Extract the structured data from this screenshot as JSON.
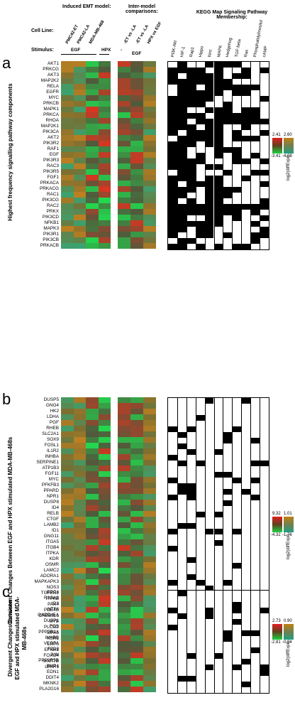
{
  "header": {
    "induced_emt": "Induced EMT model:",
    "inter_model": "Inter-model comparisons:",
    "cell_line": "Cell Line:",
    "stimulus": "Stimulus:",
    "kegg_title": "KEGG Map Signaling Pathway Membership:",
    "cell_lines": [
      "PMC42-ET",
      "PMC42-LA",
      "MDA-MB-468"
    ],
    "comparisons": [
      "-ET vs -LA",
      "-ET vs -LA",
      "HPX vs EGF"
    ],
    "stimuli": [
      "EGF",
      "HPX",
      "-",
      "EGF",
      "MDA-MB-468"
    ],
    "pathways": [
      "PI3K-Akt",
      "HIF-1",
      "Rap1",
      "Hippo",
      "Wnt",
      "MAPK",
      "Hedgehog",
      "TGF-beta",
      "Ras",
      "Phosphatidylinositol",
      "cAMP"
    ]
  },
  "panels": [
    {
      "letter": "a",
      "side_label": "Highest frequency signalling pathway components",
      "genes": [
        "AKT1",
        "PRKCG",
        "AKT3",
        "MAP2K2",
        "RELA",
        "EGFR",
        "MYC",
        "PRKCB",
        "MAPK1",
        "PRKCA",
        "RHOA",
        "MAP2K1",
        "PIK3CA",
        "AKT2",
        "PIK3R2",
        "RAF1",
        "EGF",
        "PIK3R3",
        "RAC3",
        "PIK3R5",
        "FGF1",
        "PRKACA",
        "PRKACG",
        "RAC1",
        "PIK3CG",
        "RAC2",
        "PRKX",
        "PIK3CD",
        "NFKB1",
        "MAPK3",
        "PIK3R1",
        "PIK3CB",
        "PRKACB"
      ],
      "legend": {
        "left_max": "2.41",
        "left_min": "-3.41",
        "right_max": "2.60",
        "right_min": "-4.08",
        "unit": "log2(diffExpr)"
      }
    },
    {
      "letter": "b",
      "side_label": "Consistent Changes Between EGF and HPX stimulated MDA-MB-468s",
      "genes": [
        "DUSP5",
        "GNG4",
        "HK2",
        "LDHA",
        "PGF",
        "RHEB",
        "SLC2A1",
        "SOX9",
        "FOSL1",
        "IL1R2",
        "INHBA",
        "SERPINE1",
        "ATP1B3",
        "FGF11",
        "MYC",
        "PFKFB3",
        "PPARD",
        "NPR1",
        "DUSP8",
        "ID4",
        "RELB",
        "CTGF",
        "LAMB2",
        "ID1",
        "GNG11",
        "ITGA5",
        "ITGB4",
        "ITPKA",
        "KDR",
        "OSMR",
        "LAMC2",
        "ADORA1",
        "MAPKAPK3",
        "NOS3",
        "TGFBR2",
        "ITPKB",
        "PAK4",
        "PDE4B",
        "CREB3L1",
        "MYB",
        "PLCG2",
        "SIPA1",
        "KSR1",
        "LRP5",
        "EFNA1",
        "FOXO4",
        "WNT7B",
        "LPAR1"
      ],
      "legend": {
        "left_max": "9.32",
        "left_min": "-4.32",
        "right_max": "1.01",
        "right_min": "-1.76",
        "unit": "log2(diffExpr)"
      }
    },
    {
      "letter": "c",
      "side_label": "Divergent Changes Between EGF and HPX stimulated MDA-MB-468s",
      "genes": [
        "GPC4",
        "RASA3",
        "ID3",
        "NTF4",
        "GADD45A",
        "DUSP1",
        "FOS",
        "PPP2R2A",
        "INHBB",
        "VEGFA",
        "FZD8",
        "JUN",
        "PPP2R5B",
        "BMP4",
        "EDN1",
        "DDIT4",
        "MKNK2",
        "PLA2G16"
      ],
      "legend": {
        "left_max": "2.73",
        "left_min": "-2.81",
        "right_max": "0.90",
        "right_min": "-0.94",
        "unit": "log2(diffExpr)"
      }
    }
  ],
  "colors": {
    "up_red": "#e02020",
    "down_green": "#20d040",
    "up_orange": "#c08010",
    "down_teal": "#20a080",
    "missing": "#909090"
  }
}
